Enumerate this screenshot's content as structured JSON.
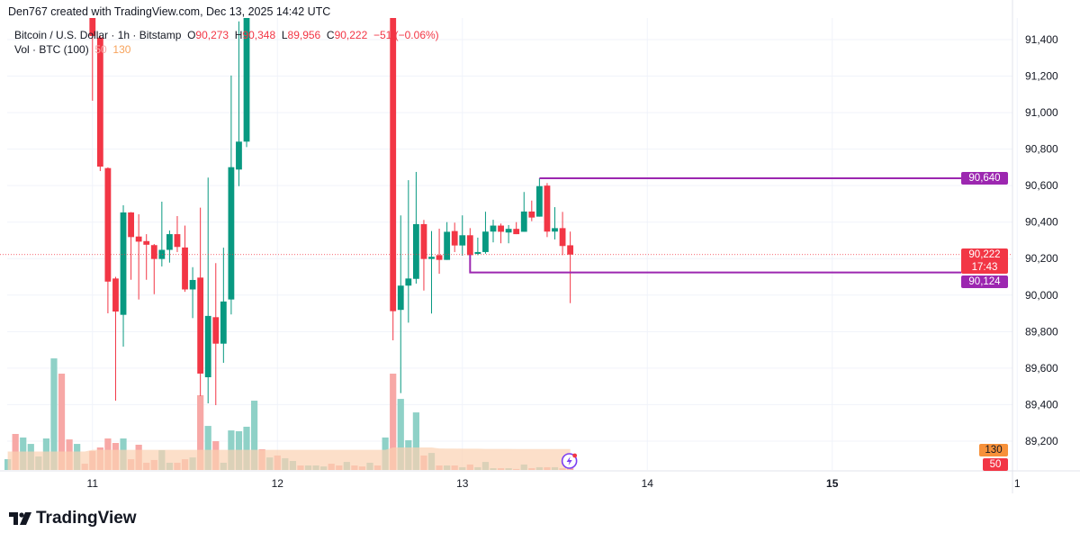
{
  "credit": "Den767 created with TradingView.com, Dec 13, 2025 14:42 UTC",
  "legend": {
    "symbol": "Bitcoin / U.S. Dollar · 1h · Bitstamp",
    "o_label": "O",
    "o": "90,273",
    "h_label": "H",
    "h": "90,348",
    "l_label": "L",
    "l": "89,956",
    "c_label": "C",
    "c": "90,222",
    "change": "−51 (−0.06%)",
    "vol_label": "Vol · BTC (100)",
    "vol": "50",
    "vol_ma": "130"
  },
  "colors": {
    "up": "#089981",
    "down": "#f23645",
    "up_vol": "#8fd1c7",
    "down_vol": "#f7a8a6",
    "vol_ma": "#fbd2b2",
    "level": "#9c27b0",
    "last": "#f23645",
    "ma_tag": "#f7913a"
  },
  "chart_data": {
    "type": "candlestick",
    "y_ticks": [
      "91,400",
      "91,200",
      "91,000",
      "90,800",
      "90,600",
      "90,400",
      "90,200",
      "90,000",
      "89,800",
      "89,600",
      "89,400",
      "89,200"
    ],
    "y_tick_values": [
      91400,
      91200,
      91000,
      90800,
      90600,
      90400,
      90200,
      90000,
      89800,
      89600,
      89400,
      89200
    ],
    "ylim": [
      89100,
      91520
    ],
    "x_ticks": [
      {
        "label": "11",
        "bar": 11,
        "bold": false
      },
      {
        "label": "12",
        "bar": 35,
        "bold": false
      },
      {
        "label": "13",
        "bar": 59,
        "bold": false
      },
      {
        "label": "14",
        "bar": 83,
        "bold": false
      },
      {
        "label": "15",
        "bar": 107,
        "bold": true
      },
      {
        "label": "1",
        "bar": 131,
        "bold": false
      }
    ],
    "bars": [
      {
        "up": true,
        "v": 67
      },
      {
        "up": false,
        "v": 224
      },
      {
        "up": true,
        "v": 202
      },
      {
        "up": true,
        "v": 162
      },
      {
        "up": true,
        "v": 84
      },
      {
        "up": true,
        "v": 196
      },
      {
        "up": true,
        "v": 694
      },
      {
        "up": false,
        "v": 599
      },
      {
        "up": false,
        "v": 190
      },
      {
        "up": true,
        "v": 162
      },
      {
        "up": false,
        "v": 39
      },
      {
        "o": 92000,
        "h": 92100,
        "l": 91065,
        "c": 91420,
        "v": 118
      },
      {
        "o": 91411,
        "h": 91420,
        "l": 90680,
        "c": 90704,
        "v": 140
      },
      {
        "o": 90696,
        "h": 90700,
        "l": 89900,
        "c": 90074,
        "v": 196
      },
      {
        "o": 90091,
        "h": 90100,
        "l": 89422,
        "c": 89910,
        "v": 168
      },
      {
        "o": 89892,
        "h": 90492,
        "l": 89718,
        "c": 90453,
        "v": 196
      },
      {
        "o": 90453,
        "h": 90455,
        "l": 90084,
        "c": 90318,
        "v": 67
      },
      {
        "o": 90321,
        "h": 90443,
        "l": 89976,
        "c": 90293,
        "v": 157
      },
      {
        "o": 90296,
        "h": 90334,
        "l": 90084,
        "c": 90276,
        "v": 45
      },
      {
        "o": 90274,
        "h": 90280,
        "l": 90005,
        "c": 90198,
        "v": 62
      },
      {
        "o": 90198,
        "h": 90512,
        "l": 90157,
        "c": 90248,
        "v": 123
      },
      {
        "o": 90248,
        "h": 90354,
        "l": 90178,
        "c": 90334,
        "v": 45
      },
      {
        "o": 90334,
        "h": 90433,
        "l": 90236,
        "c": 90264,
        "v": 45
      },
      {
        "o": 90261,
        "h": 90381,
        "l": 90018,
        "c": 90031,
        "v": 67
      },
      {
        "o": 90031,
        "h": 90153,
        "l": 89874,
        "c": 90083,
        "v": 78
      },
      {
        "o": 90096,
        "h": 90479,
        "l": 89447,
        "c": 89570,
        "v": 465
      },
      {
        "o": 89550,
        "h": 90644,
        "l": 89407,
        "c": 89886,
        "v": 274
      },
      {
        "o": 89879,
        "h": 90175,
        "l": 89397,
        "c": 89734,
        "v": 179
      },
      {
        "o": 89734,
        "h": 90260,
        "l": 89629,
        "c": 89965,
        "v": 45
      },
      {
        "o": 89976,
        "h": 91203,
        "l": 89894,
        "c": 90701,
        "v": 246
      },
      {
        "o": 90688,
        "h": 91500,
        "l": 90597,
        "c": 90841,
        "v": 241
      },
      {
        "o": 90841,
        "h": 91700,
        "l": 90811,
        "c": 91600,
        "v": 269
      },
      {
        "up": true,
        "v": 431
      },
      {
        "up": false,
        "v": 129
      },
      {
        "up": true,
        "v": 78
      },
      {
        "up": false,
        "v": 90
      },
      {
        "up": true,
        "v": 73
      },
      {
        "up": true,
        "v": 56
      },
      {
        "up": false,
        "v": 28
      },
      {
        "up": true,
        "v": 28
      },
      {
        "up": true,
        "v": 28
      },
      {
        "up": true,
        "v": 22
      },
      {
        "up": false,
        "v": 39
      },
      {
        "up": false,
        "v": 28
      },
      {
        "up": true,
        "v": 50
      },
      {
        "up": false,
        "v": 28
      },
      {
        "up": false,
        "v": 22
      },
      {
        "up": true,
        "v": 45
      },
      {
        "up": false,
        "v": 28
      },
      {
        "up": true,
        "v": 202
      },
      {
        "o": 91550,
        "h": 91600,
        "l": 89752,
        "c": 89912,
        "v": 599
      },
      {
        "o": 89919,
        "h": 90437,
        "l": 89463,
        "c": 90052,
        "v": 442
      },
      {
        "o": 90052,
        "h": 90630,
        "l": 89849,
        "c": 90091,
        "v": 185
      },
      {
        "o": 90089,
        "h": 90675,
        "l": 90063,
        "c": 90389,
        "v": 358
      },
      {
        "o": 90389,
        "h": 90412,
        "l": 90025,
        "c": 90198,
        "v": 90
      },
      {
        "o": 90198,
        "h": 90351,
        "l": 89899,
        "c": 90210,
        "v": 106
      },
      {
        "o": 90219,
        "h": 90364,
        "l": 90117,
        "c": 90193,
        "v": 28
      },
      {
        "o": 90193,
        "h": 90400,
        "l": 90193,
        "c": 90347,
        "v": 28
      },
      {
        "o": 90351,
        "h": 90397,
        "l": 90236,
        "c": 90272,
        "v": 28
      },
      {
        "o": 90272,
        "h": 90437,
        "l": 90216,
        "c": 90328,
        "v": 17
      },
      {
        "o": 90328,
        "h": 90367,
        "l": 90219,
        "c": 90219,
        "v": 34
      },
      {
        "o": 90226,
        "h": 90315,
        "l": 90219,
        "c": 90236,
        "v": 17
      },
      {
        "o": 90236,
        "h": 90457,
        "l": 90227,
        "c": 90348,
        "v": 50
      },
      {
        "o": 90348,
        "h": 90413,
        "l": 90289,
        "c": 90381,
        "v": 11
      },
      {
        "o": 90381,
        "h": 90392,
        "l": 90284,
        "c": 90347,
        "v": 11
      },
      {
        "o": 90343,
        "h": 90384,
        "l": 90284,
        "c": 90363,
        "v": 11
      },
      {
        "o": 90363,
        "h": 90400,
        "l": 90334,
        "c": 90334,
        "v": 6
      },
      {
        "o": 90347,
        "h": 90565,
        "l": 90347,
        "c": 90458,
        "v": 34
      },
      {
        "o": 90458,
        "h": 90518,
        "l": 90405,
        "c": 90425,
        "v": 11
      },
      {
        "o": 90430,
        "h": 90640,
        "l": 90430,
        "c": 90597,
        "v": 17
      },
      {
        "o": 90600,
        "h": 90614,
        "l": 90318,
        "c": 90348,
        "v": 17
      },
      {
        "o": 90348,
        "h": 90482,
        "l": 90305,
        "c": 90367,
        "v": 17
      },
      {
        "o": 90367,
        "h": 90456,
        "l": 90219,
        "c": 90269,
        "v": 11
      },
      {
        "o": 90273,
        "h": 90348,
        "l": 89956,
        "c": 90222,
        "v": 50
      }
    ],
    "vol_ma_100": [
      115,
      115,
      115,
      115,
      115,
      115,
      115,
      115,
      115,
      115,
      115,
      125,
      125,
      125,
      125,
      125,
      125,
      125,
      125,
      125,
      125,
      125,
      125,
      125,
      125,
      125,
      125,
      125,
      125,
      125,
      125,
      125,
      125,
      125,
      125,
      125,
      125,
      125,
      125,
      125,
      125,
      125,
      125,
      125,
      125,
      125,
      125,
      125,
      125,
      125,
      140,
      140,
      140,
      140,
      140,
      140,
      134,
      133,
      133,
      132,
      132,
      132,
      131,
      131,
      131,
      131,
      130,
      130,
      130,
      130,
      130,
      130,
      130,
      130
    ],
    "levels": [
      {
        "value": 90640,
        "label": "90,640",
        "from_bar": 69
      },
      {
        "value": 90124,
        "label": "90,124",
        "from_bar": 60
      }
    ],
    "last_price": {
      "value": 90222,
      "label": "90,222",
      "countdown": "17:43"
    },
    "vol_tags": {
      "ma": "130",
      "vol": "50"
    }
  },
  "logo_text": "TradingView"
}
